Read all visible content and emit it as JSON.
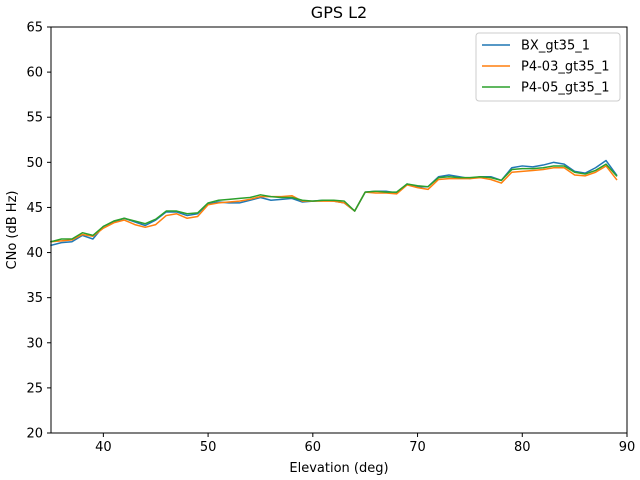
{
  "chart_data": {
    "type": "line",
    "title": "GPS L2",
    "xlabel": "Elevation (deg)",
    "ylabel": "CNo (dB Hz)",
    "xlim": [
      35,
      90
    ],
    "ylim": [
      20,
      65
    ],
    "xticks": [
      40,
      50,
      60,
      70,
      80,
      90
    ],
    "yticks": [
      20,
      25,
      30,
      35,
      40,
      45,
      50,
      55,
      60,
      65
    ],
    "grid": false,
    "legend_position": "top-right",
    "x": [
      35,
      36,
      37,
      38,
      39,
      40,
      41,
      42,
      43,
      44,
      45,
      46,
      47,
      48,
      49,
      50,
      51,
      52,
      53,
      54,
      55,
      56,
      57,
      58,
      59,
      60,
      61,
      62,
      63,
      64,
      65,
      66,
      67,
      68,
      69,
      70,
      71,
      72,
      73,
      74,
      75,
      76,
      77,
      78,
      79,
      80,
      81,
      82,
      83,
      84,
      85,
      86,
      87,
      88,
      89
    ],
    "series": [
      {
        "name": "BX_gt35_1",
        "color": "#1f77b4",
        "values": [
          40.8,
          41.1,
          41.2,
          41.9,
          41.5,
          42.9,
          43.4,
          43.8,
          43.4,
          43.0,
          43.6,
          44.5,
          44.5,
          44.1,
          44.3,
          45.4,
          45.6,
          45.5,
          45.5,
          45.8,
          46.1,
          45.8,
          45.9,
          46.0,
          45.6,
          45.7,
          45.8,
          45.7,
          45.5,
          44.6,
          46.7,
          46.8,
          46.8,
          46.6,
          47.6,
          47.3,
          47.3,
          48.4,
          48.6,
          48.4,
          48.2,
          48.4,
          48.4,
          48.0,
          49.4,
          49.6,
          49.5,
          49.7,
          50.0,
          49.8,
          49.0,
          48.8,
          49.4,
          50.2,
          48.6
        ]
      },
      {
        "name": "P4-03_gt35_1",
        "color": "#ff7f0e",
        "values": [
          41.2,
          41.3,
          41.4,
          42.0,
          41.8,
          42.7,
          43.3,
          43.6,
          43.1,
          42.8,
          43.1,
          44.1,
          44.3,
          43.8,
          44.0,
          45.3,
          45.5,
          45.6,
          45.7,
          45.9,
          46.2,
          46.2,
          46.2,
          46.3,
          45.7,
          45.7,
          45.7,
          45.7,
          45.5,
          44.6,
          46.7,
          46.6,
          46.6,
          46.5,
          47.5,
          47.2,
          47.0,
          48.1,
          48.2,
          48.2,
          48.2,
          48.3,
          48.1,
          47.7,
          48.9,
          49.0,
          49.1,
          49.2,
          49.4,
          49.4,
          48.6,
          48.5,
          48.9,
          49.6,
          48.1
        ]
      },
      {
        "name": "P4-05_gt35_1",
        "color": "#2ca02c",
        "values": [
          41.2,
          41.5,
          41.5,
          42.2,
          41.9,
          42.9,
          43.5,
          43.8,
          43.5,
          43.2,
          43.7,
          44.6,
          44.6,
          44.3,
          44.4,
          45.5,
          45.8,
          45.9,
          46.0,
          46.1,
          46.4,
          46.2,
          46.1,
          46.1,
          45.8,
          45.7,
          45.8,
          45.8,
          45.7,
          44.6,
          46.7,
          46.8,
          46.7,
          46.7,
          47.6,
          47.4,
          47.3,
          48.3,
          48.4,
          48.3,
          48.3,
          48.4,
          48.3,
          48.0,
          49.2,
          49.3,
          49.3,
          49.4,
          49.6,
          49.6,
          48.9,
          48.7,
          49.1,
          49.8,
          48.5
        ]
      }
    ]
  }
}
